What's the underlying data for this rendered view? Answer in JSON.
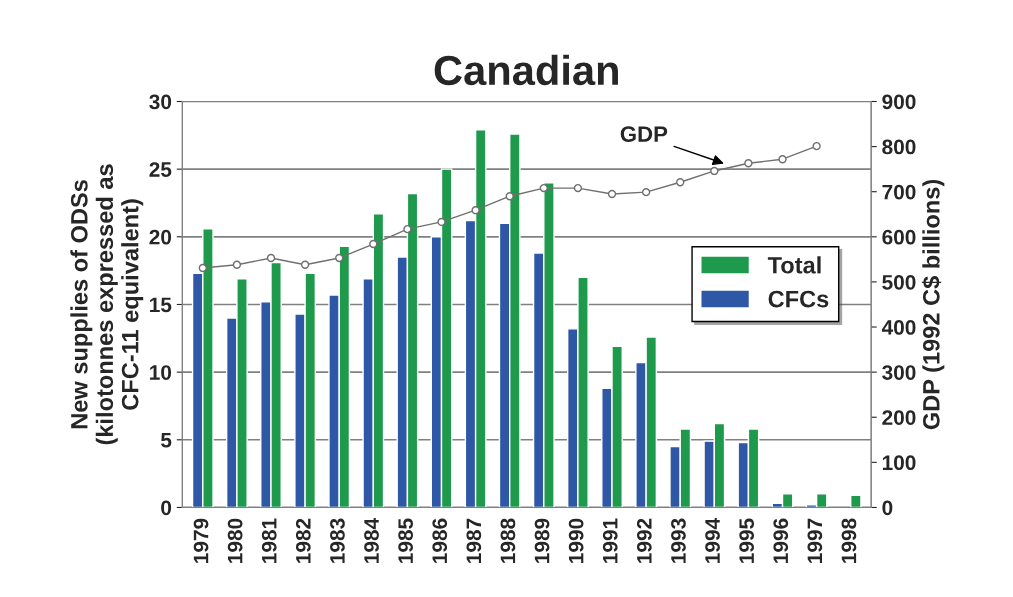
{
  "chart_data": {
    "type": "bar",
    "title": "Canadian",
    "ylabel": "New supplies of ODSs\n(kilotonnes expressed as\nCFC-11 equivalent)",
    "y2label": "GDP (1992 C$ billions)",
    "categories": [
      "1979",
      "1980",
      "1981",
      "1982",
      "1983",
      "1984",
      "1985",
      "1986",
      "1987",
      "1988",
      "1989",
      "1990",
      "1991",
      "1992",
      "1993",
      "1994",
      "1995",
      "1996",
      "1997",
      "1998"
    ],
    "series": [
      {
        "name": "CFCs",
        "color": "#2e57a5",
        "values": [
          17.3,
          14.0,
          15.2,
          14.3,
          15.7,
          16.9,
          18.5,
          20.0,
          21.2,
          21.0,
          18.8,
          13.2,
          8.8,
          10.7,
          4.5,
          4.9,
          4.8,
          0.3,
          0.2,
          null
        ]
      },
      {
        "name": "Total",
        "color": "#1f9a4c",
        "values": [
          20.6,
          16.9,
          18.1,
          17.3,
          19.3,
          21.7,
          23.2,
          25.0,
          27.9,
          27.6,
          24.0,
          17.0,
          11.9,
          12.6,
          5.8,
          6.2,
          5.8,
          1.0,
          1.0,
          0.9
        ]
      },
      {
        "type": "line",
        "axis": "y2",
        "color": "#707070",
        "marker": "circle",
        "values": [
          531,
          538,
          553,
          538,
          553,
          584,
          617,
          633,
          659,
          690,
          708,
          708,
          695,
          699,
          721,
          746,
          763,
          772,
          801,
          null
        ]
      }
    ],
    "annotations": [
      "GDP"
    ],
    "ylim": [
      0,
      30
    ],
    "yticks": [
      0,
      5,
      10,
      15,
      20,
      25,
      30
    ],
    "y2lim": [
      0,
      900
    ],
    "y2ticks": [
      0,
      100,
      200,
      300,
      400,
      500,
      600,
      700,
      800,
      900
    ],
    "grid": "y",
    "legend": "right"
  }
}
